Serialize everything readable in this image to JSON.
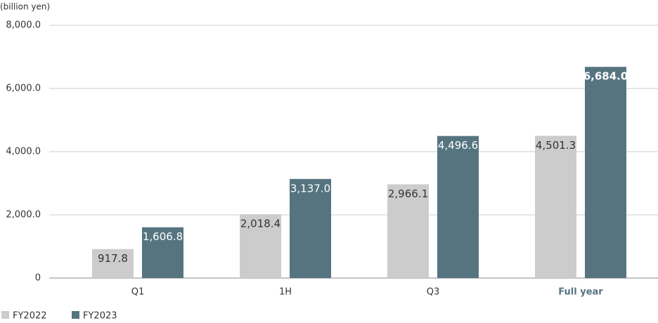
{
  "chart_data": {
    "type": "bar",
    "y_axis_label": "(billion yen)",
    "categories": [
      "Q1",
      "1H",
      "Q3",
      "Full year"
    ],
    "series": [
      {
        "name": "FY2022",
        "color": "#cccccc",
        "values": [
          917.8,
          2018.4,
          2966.1,
          4501.3
        ],
        "value_labels": [
          "917.8",
          "2,018.4",
          "2,966.1",
          "4,501.3"
        ]
      },
      {
        "name": "FY2023",
        "color": "#557480",
        "values": [
          1606.8,
          3137.0,
          4496.6,
          6684.0
        ],
        "value_labels": [
          "1,606.8",
          "3,137.0",
          "4,496.6",
          "6,684.0"
        ]
      }
    ],
    "ylim": [
      0,
      8000
    ],
    "yticks": [
      0,
      {
        "value": 2000,
        "label": "2,000.0"
      },
      {
        "value": 4000,
        "label": "4,000.0"
      },
      {
        "value": 6000,
        "label": "6,000.0"
      },
      {
        "value": 8000,
        "label": "8,000.0"
      }
    ],
    "grid": true
  }
}
